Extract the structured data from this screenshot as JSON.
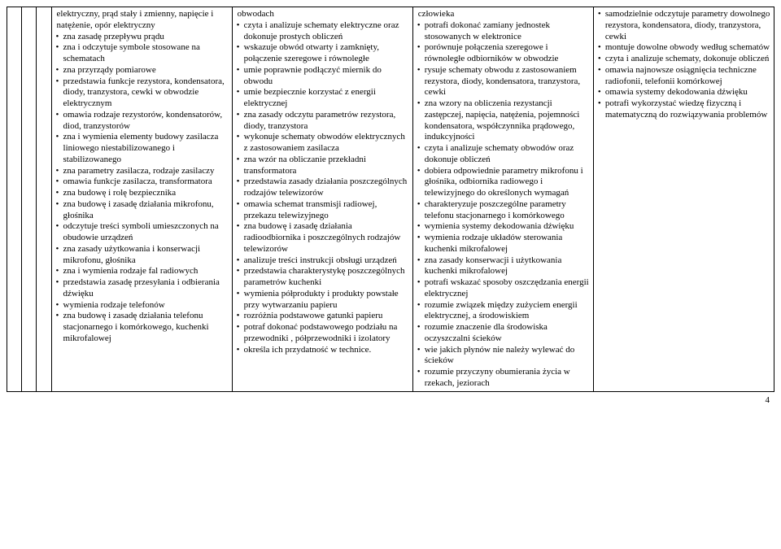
{
  "page_number": "4",
  "columns": {
    "col1": [
      "elektryczny, prąd stały i zmienny, napięcie i natężenie, opór elektryczny",
      "zna zasadę przepływu prądu",
      "zna i odczytuje symbole stosowane na schematach",
      "zna przyrządy pomiarowe",
      "przedstawia funkcje rezystora, kondensatora, diody, tranzystora, cewki w obwodzie elektrycznym",
      "omawia rodzaje rezystorów, kondensatorów, diod, tranzystorów",
      "zna i wymienia elementy budowy zasilacza liniowego niestabilizowanego i stabilizowanego",
      "zna parametry zasilacza, rodzaje zasilaczy",
      "omawia funkcje zasilacza, transformatora",
      "zna budowę i rolę bezpiecznika",
      "zna budowę i zasadę działania mikrofonu, głośnika",
      "odczytuje treści symboli umieszczonych na obudowie urządzeń",
      "zna zasady użytkowania i konserwacji mikrofonu, głośnika",
      "zna i wymienia rodzaje fal radiowych",
      "przedstawia zasadę przesyłania i odbierania dźwięku",
      "wymienia rodzaje telefonów",
      "zna budowę i zasadę działania telefonu stacjonarnego i komórkowego, kuchenki mikrofalowej"
    ],
    "col2": [
      "obwodach",
      "czyta i analizuje schematy elektryczne oraz dokonuje prostych obliczeń",
      "wskazuje obwód otwarty i zamknięty, połączenie szeregowe i równoległe",
      "umie poprawnie podłączyć miernik do obwodu",
      "umie bezpiecznie korzystać z energii elektrycznej",
      "zna zasady odczytu parametrów rezystora, diody, tranzystora",
      "wykonuje schematy obwodów elektrycznych z zastosowaniem zasilacza",
      "zna wzór na obliczanie przekładni transformatora",
      "przedstawia zasady działania poszczególnych rodzajów telewizorów",
      "omawia schemat transmisji radiowej, przekazu telewizyjnego",
      "zna budowę i zasadę działania radioodbiornika i poszczególnych rodzajów telewizorów",
      "analizuje treści instrukcji obsługi urządzeń",
      "przedstawia charakterystykę poszczególnych parametrów kuchenki",
      "wymienia półprodukty i produkty powstałe przy wytwarzaniu papieru",
      "rozróżnia podstawowe gatunki papieru",
      "potraf dokonać podstawowego podziału na przewodniki , półprzewodniki i izolatory",
      "określa ich przydatność w technice."
    ],
    "col3": [
      "człowieka",
      "potrafi dokonać zamiany jednostek stosowanych w elektronice",
      "porównuje połączenia szeregowe i równoległe odbiorników w obwodzie",
      "rysuje schematy obwodu z zastosowaniem rezystora, diody, kondensatora, tranzystora, cewki",
      "zna wzory na obliczenia rezystancji zastępczej, napięcia, natężenia, pojemności kondensatora, współczynnika prądowego, indukcyjności",
      "czyta i analizuje schematy obwodów oraz dokonuje obliczeń",
      "dobiera odpowiednie parametry mikrofonu i głośnika, odbiornika radiowego i telewizyjnego do określonych wymagań",
      "charakteryzuje poszczególne parametry telefonu stacjonarnego i komórkowego",
      "wymienia systemy dekodowania dźwięku",
      "wymienia rodzaje układów sterowania kuchenki mikrofalowej",
      "zna zasady konserwacji i użytkowania kuchenki mikrofalowej",
      "potrafi wskazać sposoby oszczędzania energii elektrycznej",
      "rozumie związek między zużyciem energii elektrycznej, a środowiskiem",
      "rozumie znaczenie dla środowiska oczyszczalni ścieków",
      "wie jakich płynów nie należy wylewać do ścieków",
      "rozumie przyczyny obumierania życia w rzekach, jeziorach"
    ],
    "col4": [
      "samodzielnie odczytuje parametry dowolnego rezystora, kondensatora, diody, tranzystora, cewki",
      "montuje dowolne obwody według schematów",
      "czyta i analizuje schematy, dokonuje obliczeń",
      "omawia najnowsze osiągnięcia techniczne radiofonii, telefonii komórkowej",
      "omawia systemy dekodowania dźwięku",
      "potrafi wykorzystać wiedzę fizyczną i matematyczną do rozwiązywania problemów"
    ]
  }
}
